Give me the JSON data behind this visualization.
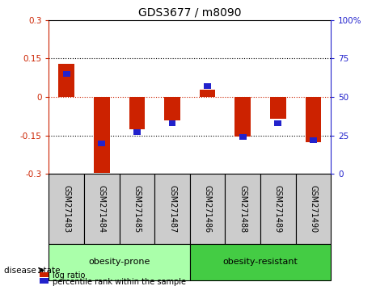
{
  "title": "GDS3677 / m8090",
  "samples": [
    "GSM271483",
    "GSM271484",
    "GSM271485",
    "GSM271487",
    "GSM271486",
    "GSM271488",
    "GSM271489",
    "GSM271490"
  ],
  "log_ratio": [
    0.13,
    -0.295,
    -0.125,
    -0.09,
    0.03,
    -0.155,
    -0.085,
    -0.175
  ],
  "percentile_rank": [
    65,
    20,
    27,
    33,
    57,
    24,
    33,
    22
  ],
  "groups": [
    {
      "label": "obesity-prone",
      "indices": [
        0,
        1,
        2,
        3
      ],
      "color": "#aaffaa"
    },
    {
      "label": "obesity-resistant",
      "indices": [
        4,
        5,
        6,
        7
      ],
      "color": "#44cc44"
    }
  ],
  "disease_state_label": "disease state",
  "ylim_left": [
    -0.3,
    0.3
  ],
  "ylim_right": [
    0,
    100
  ],
  "yticks_left": [
    -0.3,
    -0.15,
    0,
    0.15,
    0.3
  ],
  "yticks_right": [
    0,
    25,
    50,
    75,
    100
  ],
  "bar_color_red": "#cc2200",
  "bar_color_blue": "#2222cc",
  "bar_width": 0.45,
  "blue_bar_width": 0.2,
  "blue_bar_height": 0.022,
  "legend_red": "log ratio",
  "legend_blue": "percentile rank within the sample",
  "tick_label_color_left": "#cc2200",
  "tick_label_color_right": "#2222cc",
  "xlabel_bg": "#cccccc",
  "grid_hlines": [
    0.15,
    -0.15
  ],
  "zero_line_color": "#cc2200"
}
